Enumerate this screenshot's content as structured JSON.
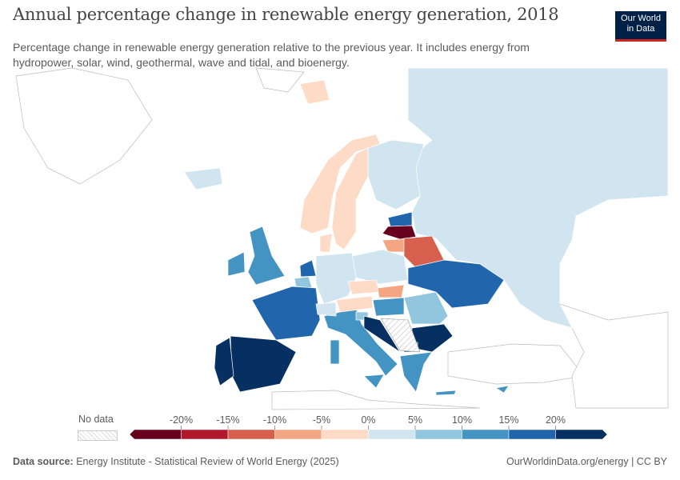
{
  "title": "Annual percentage change in renewable energy generation, 2018",
  "subtitle": "Percentage change in renewable energy generation relative to the previous year. It includes energy from hydropower, solar, wind, geothermal, wave and tidal, and bioenergy.",
  "logo": {
    "line1": "Our World",
    "line2": "in Data"
  },
  "legend": {
    "no_data": "No data",
    "ticks": [
      "-20%",
      "-15%",
      "-10%",
      "-5%",
      "0%",
      "5%",
      "10%",
      "15%",
      "20%"
    ],
    "colors": [
      "#67001f",
      "#b2182b",
      "#d6604d",
      "#f4a582",
      "#fddbc7",
      "#d1e5f0",
      "#92c5de",
      "#4393c3",
      "#2166ac",
      "#053061"
    ]
  },
  "countries": [
    {
      "name": "Russia",
      "bin": 5
    },
    {
      "name": "Finland",
      "bin": 5
    },
    {
      "name": "Norway",
      "bin": 4
    },
    {
      "name": "Sweden",
      "bin": 4
    },
    {
      "name": "Estonia",
      "bin": 8
    },
    {
      "name": "Latvia",
      "bin": 0
    },
    {
      "name": "Lithuania",
      "bin": 3
    },
    {
      "name": "Belarus",
      "bin": 2
    },
    {
      "name": "Poland",
      "bin": 5
    },
    {
      "name": "Germany",
      "bin": 5
    },
    {
      "name": "Denmark",
      "bin": 4
    },
    {
      "name": "United Kingdom",
      "bin": 7
    },
    {
      "name": "Ireland",
      "bin": 7
    },
    {
      "name": "Netherlands",
      "bin": 8
    },
    {
      "name": "Belgium",
      "bin": 6
    },
    {
      "name": "France",
      "bin": 8
    },
    {
      "name": "Spain",
      "bin": 9
    },
    {
      "name": "Portugal",
      "bin": 9
    },
    {
      "name": "Italy",
      "bin": 7
    },
    {
      "name": "Switzerland",
      "bin": 5
    },
    {
      "name": "Austria",
      "bin": 4
    },
    {
      "name": "Czechia",
      "bin": 4
    },
    {
      "name": "Slovakia",
      "bin": 3
    },
    {
      "name": "Hungary",
      "bin": 7
    },
    {
      "name": "Slovenia",
      "bin": 6
    },
    {
      "name": "Croatia",
      "bin": 9
    },
    {
      "name": "Romania",
      "bin": 6
    },
    {
      "name": "Bulgaria",
      "bin": 9
    },
    {
      "name": "Greece",
      "bin": 7
    },
    {
      "name": "Ukraine",
      "bin": 8
    },
    {
      "name": "Iceland",
      "bin": 5
    },
    {
      "name": "Svalbard",
      "bin": 4
    },
    {
      "name": "Cyprus",
      "bin": 7
    },
    {
      "name": "North Macedonia",
      "bin": 9
    },
    {
      "name": "Serbia",
      "bin": null
    }
  ],
  "footer": {
    "source_label": "Data source:",
    "source": "Energy Institute - Statistical Review of World Energy (2025)",
    "link": "OurWorldinData.org/energy | CC BY"
  }
}
